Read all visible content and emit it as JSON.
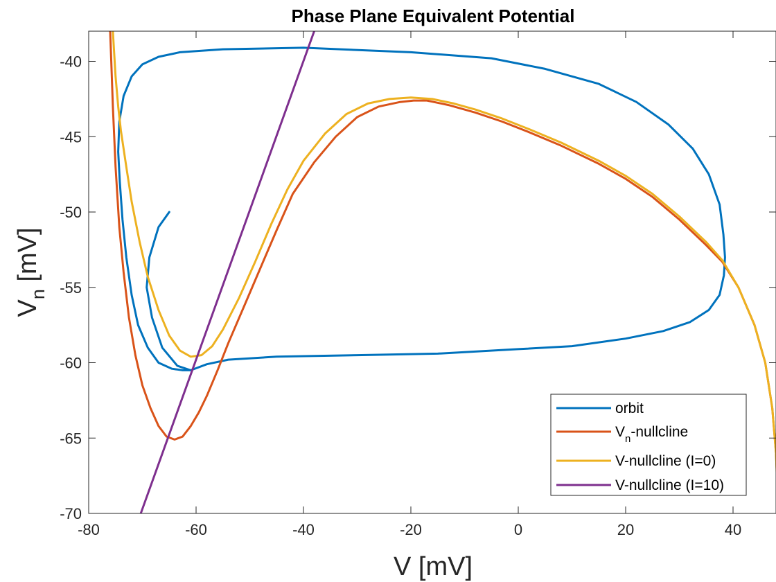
{
  "chart_data": {
    "type": "line",
    "title": "Phase Plane Equivalent Potential",
    "xlabel": {
      "main": "V [mV]"
    },
    "ylabel": {
      "main": "V",
      "sub": "n",
      "rest": " [mV]"
    },
    "xlim": [
      -80,
      48
    ],
    "ylim": [
      -70,
      -38
    ],
    "xticks": [
      -80,
      -60,
      -40,
      -20,
      0,
      20,
      40
    ],
    "yticks": [
      -70,
      -65,
      -60,
      -55,
      -50,
      -45,
      -40
    ],
    "grid": false,
    "legend_position": "bottom-right",
    "series": [
      {
        "name": "orbit",
        "legend": {
          "main": "orbit",
          "sub": "",
          "rest": ""
        },
        "color": "#0072BD",
        "points": [
          [
            -65,
            -50
          ],
          [
            -67,
            -51
          ],
          [
            -68.7,
            -53
          ],
          [
            -69.2,
            -55
          ],
          [
            -68.2,
            -57
          ],
          [
            -66.3,
            -59
          ],
          [
            -63.5,
            -60.2
          ],
          [
            -61,
            -60.5
          ],
          [
            -58,
            -60.1
          ],
          [
            -54,
            -59.8
          ],
          [
            -45,
            -59.6
          ],
          [
            -30,
            -59.5
          ],
          [
            -15,
            -59.4
          ],
          [
            0,
            -59.1
          ],
          [
            10,
            -58.9
          ],
          [
            20,
            -58.4
          ],
          [
            27,
            -57.9
          ],
          [
            32,
            -57.3
          ],
          [
            35.5,
            -56.5
          ],
          [
            37.5,
            -55.5
          ],
          [
            38.3,
            -54.2
          ],
          [
            38.5,
            -53
          ],
          [
            38.2,
            -51.5
          ],
          [
            37.5,
            -49.5
          ],
          [
            35.5,
            -47.5
          ],
          [
            32.5,
            -45.8
          ],
          [
            28,
            -44.2
          ],
          [
            22,
            -42.7
          ],
          [
            15,
            -41.5
          ],
          [
            5,
            -40.5
          ],
          [
            -5,
            -39.8
          ],
          [
            -20,
            -39.4
          ],
          [
            -40,
            -39.1
          ],
          [
            -55,
            -39.2
          ],
          [
            -63,
            -39.4
          ],
          [
            -67,
            -39.7
          ],
          [
            -70,
            -40.2
          ],
          [
            -72,
            -41
          ],
          [
            -73.5,
            -42.3
          ],
          [
            -74.3,
            -44
          ],
          [
            -74.5,
            -46
          ],
          [
            -74.2,
            -48
          ],
          [
            -73.7,
            -50.5
          ],
          [
            -73,
            -53
          ],
          [
            -72,
            -55.5
          ],
          [
            -70.8,
            -57.5
          ],
          [
            -69,
            -59
          ],
          [
            -67,
            -60
          ],
          [
            -64.5,
            -60.4
          ],
          [
            -62.5,
            -60.5
          ],
          [
            -61,
            -60.5
          ]
        ]
      },
      {
        "name": "Vn-nullcline",
        "legend": {
          "main": "V",
          "sub": "n",
          "rest": "-nullcline"
        },
        "color": "#D95319",
        "points": [
          [
            -76,
            -38
          ],
          [
            -75.8,
            -40
          ],
          [
            -75.5,
            -43
          ],
          [
            -75,
            -47
          ],
          [
            -74.3,
            -51
          ],
          [
            -73.5,
            -54
          ],
          [
            -72.5,
            -57
          ],
          [
            -71.3,
            -59.5
          ],
          [
            -70,
            -61.5
          ],
          [
            -68.5,
            -63
          ],
          [
            -67,
            -64.2
          ],
          [
            -65.5,
            -64.9
          ],
          [
            -64,
            -65.1
          ],
          [
            -62.5,
            -64.9
          ],
          [
            -61,
            -64.2
          ],
          [
            -59.5,
            -63.3
          ],
          [
            -58,
            -62.2
          ],
          [
            -56,
            -60.5
          ],
          [
            -54,
            -58.7
          ],
          [
            -51,
            -56.2
          ],
          [
            -48,
            -53.7
          ],
          [
            -45,
            -51.2
          ],
          [
            -42,
            -48.8
          ],
          [
            -38,
            -46.7
          ],
          [
            -34,
            -45
          ],
          [
            -30,
            -43.7
          ],
          [
            -26,
            -43
          ],
          [
            -22,
            -42.7
          ],
          [
            -19.5,
            -42.6
          ],
          [
            -17,
            -42.6
          ],
          [
            -13,
            -42.9
          ],
          [
            -8,
            -43.4
          ],
          [
            -3,
            -44
          ],
          [
            2,
            -44.7
          ],
          [
            8,
            -45.6
          ],
          [
            15,
            -46.8
          ],
          [
            20,
            -47.8
          ],
          [
            25,
            -49
          ],
          [
            30,
            -50.5
          ],
          [
            35,
            -52.2
          ],
          [
            38,
            -53.3
          ],
          [
            41,
            -55
          ],
          [
            44,
            -57.5
          ],
          [
            46,
            -60
          ],
          [
            47.3,
            -63
          ],
          [
            48,
            -66
          ],
          [
            48.5,
            -70
          ]
        ]
      },
      {
        "name": "V-nullcline (I=0)",
        "legend": {
          "main": "V-nullcline (I=0)",
          "sub": "",
          "rest": ""
        },
        "color": "#EDB120",
        "points": [
          [
            -75.5,
            -38
          ],
          [
            -75,
            -41
          ],
          [
            -74.5,
            -43
          ],
          [
            -74,
            -44.6
          ],
          [
            -73,
            -47
          ],
          [
            -72,
            -49.3
          ],
          [
            -70.5,
            -52
          ],
          [
            -69,
            -54.3
          ],
          [
            -67,
            -56.5
          ],
          [
            -65,
            -58.2
          ],
          [
            -63,
            -59.2
          ],
          [
            -61,
            -59.6
          ],
          [
            -59,
            -59.5
          ],
          [
            -57,
            -58.9
          ],
          [
            -55,
            -57.8
          ],
          [
            -52,
            -55.7
          ],
          [
            -49,
            -53.3
          ],
          [
            -46,
            -50.8
          ],
          [
            -43,
            -48.5
          ],
          [
            -40,
            -46.6
          ],
          [
            -36,
            -44.8
          ],
          [
            -32,
            -43.5
          ],
          [
            -28,
            -42.8
          ],
          [
            -24,
            -42.5
          ],
          [
            -20,
            -42.4
          ],
          [
            -16,
            -42.5
          ],
          [
            -12,
            -42.8
          ],
          [
            -8,
            -43.2
          ],
          [
            -3,
            -43.8
          ],
          [
            2,
            -44.5
          ],
          [
            8,
            -45.4
          ],
          [
            15,
            -46.6
          ],
          [
            20,
            -47.6
          ],
          [
            25,
            -48.8
          ],
          [
            30,
            -50.3
          ],
          [
            35,
            -52
          ],
          [
            38,
            -53.2
          ],
          [
            41,
            -55
          ],
          [
            44,
            -57.5
          ],
          [
            46,
            -60
          ],
          [
            47.3,
            -63
          ],
          [
            48,
            -66
          ],
          [
            48.4,
            -70
          ]
        ]
      },
      {
        "name": "V-nullcline (I=10)",
        "legend": {
          "main": "V-nullcline (I=10)",
          "sub": "",
          "rest": ""
        },
        "color": "#7E2F8E",
        "points": [
          [
            -70.3,
            -70
          ],
          [
            -38,
            -38
          ]
        ]
      }
    ]
  }
}
